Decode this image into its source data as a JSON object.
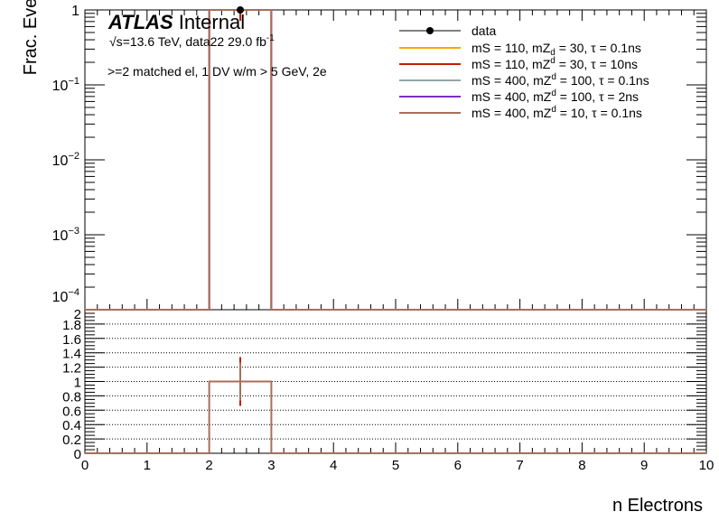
{
  "chart_data": [
    {
      "type": "bar",
      "panel": "main",
      "ylabel": "Frac. Events",
      "yscale": "log",
      "ylim": [
        0.0001,
        1
      ],
      "xlim": [
        0,
        10
      ],
      "ytick_labels": [
        {
          "value": 1,
          "base": "1",
          "exp": ""
        },
        {
          "value": 0.1,
          "base": "10",
          "exp": "−1"
        },
        {
          "value": 0.01,
          "base": "10",
          "exp": "−2"
        },
        {
          "value": 0.001,
          "base": "10",
          "exp": "−3"
        },
        {
          "value": 0.0001,
          "base": "10",
          "exp": "−4"
        }
      ],
      "annotations": {
        "atlas": "ATLAS",
        "internal": "Internal",
        "sqrt": "√s",
        "energy": "=13.6 TeV, data22 29.0 fb",
        "lumi_exp": "-1",
        "selection": ">=2 matched el, 1 DV w/m > 5 GeV, 2e"
      },
      "legend_position": "top-right",
      "data": {
        "name": "data",
        "x": 2.5,
        "y": 1,
        "color": "#000000"
      },
      "series": [
        {
          "name": "mS = 110, mZ",
          "sub": "d",
          "rest": " = 30, τ = 0.1ns",
          "color": "#ffa500",
          "bins": [
            [
              2,
              3,
              1
            ]
          ]
        },
        {
          "name": "mS = 110, mZ",
          "sub": "d",
          "rest": " = 30, τ = 10ns",
          "color": "#c01f00",
          "bins": [
            [
              2,
              3,
              1
            ]
          ]
        },
        {
          "name": "mS = 400, mZ",
          "sub": "d",
          "rest": " = 100, τ = 0.1ns",
          "color": "#95a5a6",
          "bins": [
            [
              2,
              3,
              1
            ]
          ]
        },
        {
          "name": "mS = 400, mZ",
          "sub": "d",
          "rest": " = 100, τ = 2ns",
          "color": "#7b2fbe",
          "bins": [
            [
              2,
              3,
              1
            ]
          ]
        },
        {
          "name": "mS = 400, mZ",
          "sub": "d",
          "rest": " = 10, τ = 0.1ns",
          "color": "#a96e5b",
          "bins": [
            [
              2,
              3,
              1
            ]
          ]
        }
      ]
    },
    {
      "type": "bar",
      "panel": "ratio",
      "xlabel": "n Electrons",
      "xlim": [
        0,
        10
      ],
      "ylim": [
        0,
        2
      ],
      "grid": true,
      "xticks": [
        "0",
        "1",
        "2",
        "3",
        "4",
        "5",
        "6",
        "7",
        "8",
        "9",
        "10"
      ],
      "yticks": [
        "0",
        "0.2",
        "0.4",
        "0.6",
        "0.8",
        "1",
        "1.2",
        "1.4",
        "1.6",
        "1.8",
        "2"
      ],
      "ratio_bins": [
        [
          2,
          3,
          1
        ]
      ],
      "ratio_color": "#a96e5b",
      "error_bar": {
        "x": 2.5,
        "y": 1,
        "low": 0.66,
        "high": 1.34,
        "color": "#c01f00"
      }
    }
  ]
}
